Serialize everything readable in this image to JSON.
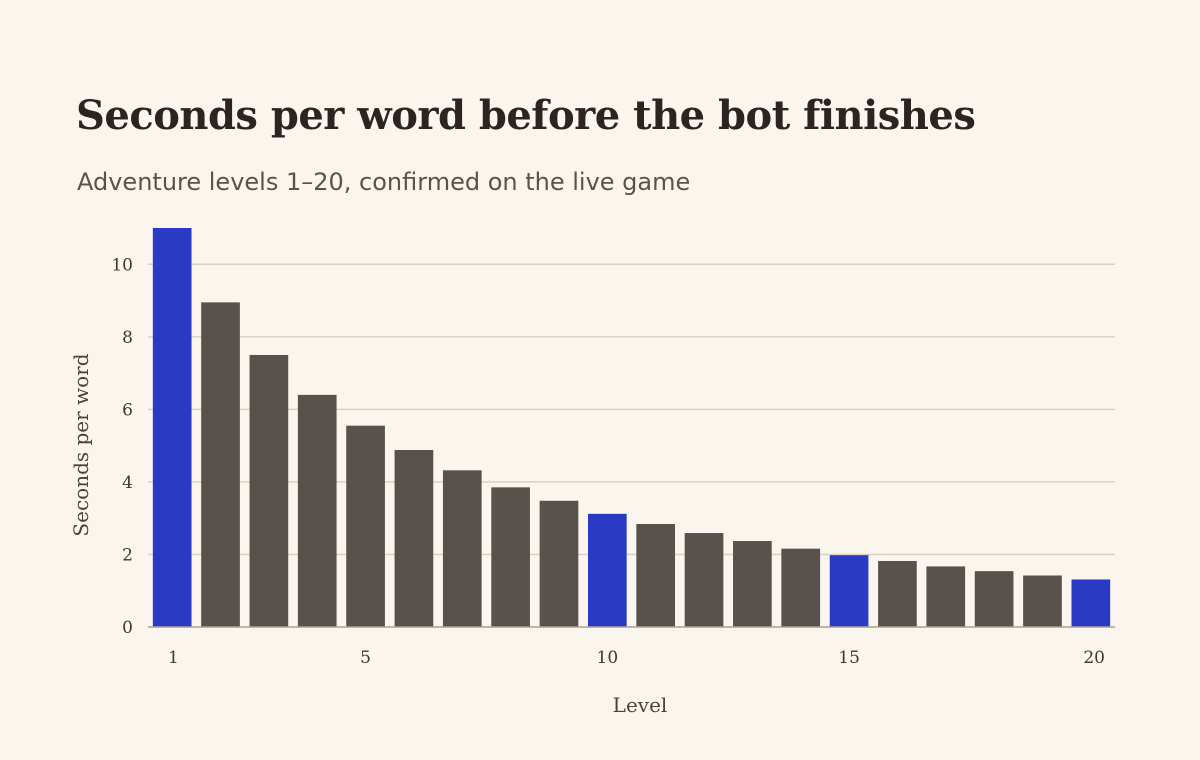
{
  "title": "Seconds per word before the bot finishes",
  "subtitle": "Adventure levels 1–20, confirmed on the live game",
  "colors": {
    "background": "#faf6ee",
    "bar_default": "#58514c",
    "bar_highlight": "#2b3ac4",
    "grid": "#d9d1c4",
    "axis": "#aaa196"
  },
  "chart_data": {
    "type": "bar",
    "title": "Seconds per word before the bot finishes",
    "subtitle": "Adventure levels 1–20, confirmed on the live game",
    "xlabel": "Level",
    "ylabel": "Seconds per word",
    "categories": [
      1,
      2,
      3,
      4,
      5,
      6,
      7,
      8,
      9,
      10,
      11,
      12,
      13,
      14,
      15,
      16,
      17,
      18,
      19,
      20
    ],
    "values": [
      11.0,
      8.95,
      7.5,
      6.4,
      5.55,
      4.88,
      4.32,
      3.85,
      3.48,
      3.12,
      2.84,
      2.59,
      2.37,
      2.16,
      1.98,
      1.82,
      1.67,
      1.54,
      1.42,
      1.31
    ],
    "highlighted": [
      1,
      10,
      15,
      20
    ],
    "ylim": [
      0,
      11
    ],
    "yticks": [
      0,
      2,
      4,
      6,
      8,
      10
    ],
    "xticks": [
      1,
      5,
      10,
      15,
      20
    ],
    "grid": "horizontal"
  }
}
